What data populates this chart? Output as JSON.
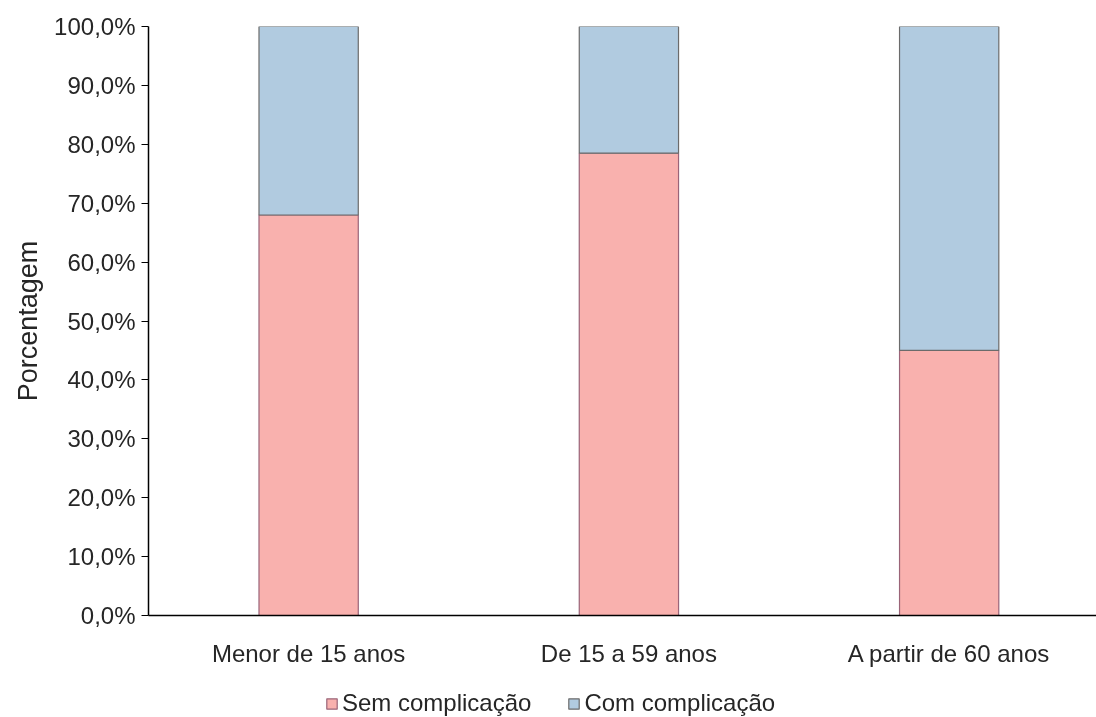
{
  "chart_data": {
    "type": "bar",
    "stacked": true,
    "ylabel": "Porcentagem",
    "categories": [
      "Menor de 15 anos",
      "De 15 a 59 anos",
      "A partir de 60 anos"
    ],
    "series": [
      {
        "name": "Sem complicação",
        "color": "#f9b1ae",
        "values": [
          68,
          78.5,
          45
        ]
      },
      {
        "name": "Com complicação",
        "color": "#b1cbe0",
        "values": [
          32,
          21.5,
          55
        ]
      }
    ],
    "ylim": [
      0,
      100
    ],
    "yticks": [
      {
        "value": 0,
        "label": "0,0%"
      },
      {
        "value": 10,
        "label": "10,0%"
      },
      {
        "value": 20,
        "label": "20,0%"
      },
      {
        "value": 30,
        "label": "30,0%"
      },
      {
        "value": 40,
        "label": "40,0%"
      },
      {
        "value": 50,
        "label": "50,0%"
      },
      {
        "value": 60,
        "label": "60,0%"
      },
      {
        "value": 70,
        "label": "70,0%"
      },
      {
        "value": 80,
        "label": "80,0%"
      },
      {
        "value": 90,
        "label": "90,0%"
      },
      {
        "value": 100,
        "label": "100,0%"
      }
    ],
    "legend": "bottom",
    "grid": false
  }
}
